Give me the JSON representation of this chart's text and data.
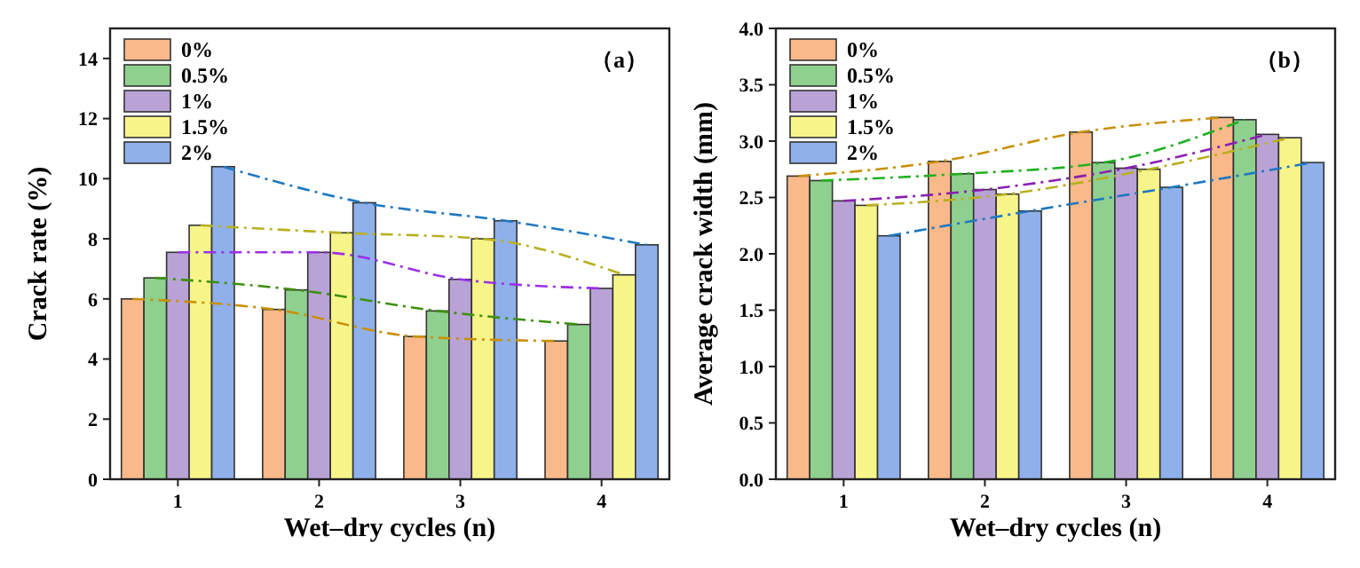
{
  "chart_data": [
    {
      "type": "bar",
      "xlabel": "Wet–dry cycles (n)",
      "ylabel": "Crack rate (%)",
      "categories": [
        "1",
        "2",
        "3",
        "4"
      ],
      "ylim": [
        0,
        15
      ],
      "yticks": [
        0,
        2,
        4,
        6,
        8,
        10,
        12,
        14
      ],
      "legend": "top left",
      "grid": false,
      "annotations": [
        "（a）"
      ],
      "series": [
        {
          "name": "0%",
          "color": "#f9b98a",
          "values": [
            6.0,
            5.65,
            4.75,
            4.6
          ]
        },
        {
          "name": "0.5%",
          "color": "#8fd08f",
          "values": [
            6.7,
            6.3,
            5.6,
            5.15
          ]
        },
        {
          "name": "1%",
          "color": "#b9a3d6",
          "values": [
            7.55,
            7.55,
            6.65,
            6.35
          ]
        },
        {
          "name": "1.5%",
          "color": "#f7f58a",
          "values": [
            8.45,
            8.2,
            8.0,
            6.8
          ]
        },
        {
          "name": "2%",
          "color": "#8fb0ea",
          "values": [
            10.4,
            9.2,
            8.6,
            7.8
          ]
        },
        {
          "type": "line",
          "color": "#c8900a",
          "line_style": "dashed",
          "values": [
            6.0,
            5.65,
            4.75,
            4.6
          ]
        },
        {
          "type": "line",
          "color": "#3f8f10",
          "line_style": "dashed",
          "values": [
            6.7,
            6.3,
            5.6,
            5.15
          ]
        },
        {
          "type": "line",
          "color": "#9a30e8",
          "line_style": "dashed",
          "values": [
            7.55,
            7.55,
            6.65,
            6.35
          ]
        },
        {
          "type": "line",
          "color": "#b8b020",
          "line_style": "dashed",
          "values": [
            8.45,
            8.2,
            8.0,
            6.8
          ]
        },
        {
          "type": "line",
          "color": "#1f78c0",
          "line_style": "dashed",
          "values": [
            10.4,
            9.2,
            8.6,
            7.8
          ]
        }
      ]
    },
    {
      "type": "bar",
      "xlabel": "Wet–dry cycles (n)",
      "ylabel": "Average crack width (mm)",
      "categories": [
        "1",
        "2",
        "3",
        "4"
      ],
      "ylim": [
        0,
        4
      ],
      "yticks": [
        {
          "value": 0,
          "label": "0.0"
        },
        {
          "value": 0.5,
          "label": "0.5"
        },
        {
          "value": 1,
          "label": "1.0"
        },
        {
          "value": 1.5,
          "label": "1.5"
        },
        {
          "value": 2,
          "label": "2.0"
        },
        {
          "value": 2.5,
          "label": "2.5"
        },
        {
          "value": 3,
          "label": "3.0"
        },
        {
          "value": 3.5,
          "label": "3.5"
        },
        {
          "value": 4,
          "label": "4.0"
        }
      ],
      "legend": "top left",
      "grid": false,
      "annotations": [
        "（b）"
      ],
      "series": [
        {
          "name": "0%",
          "color": "#f9b98a",
          "values": [
            2.69,
            2.82,
            3.08,
            3.21
          ]
        },
        {
          "name": "0.5%",
          "color": "#8fd08f",
          "values": [
            2.65,
            2.71,
            2.81,
            3.19
          ]
        },
        {
          "name": "1%",
          "color": "#b9a3d6",
          "values": [
            2.47,
            2.57,
            2.76,
            3.06
          ]
        },
        {
          "name": "1.5%",
          "color": "#f7f58a",
          "values": [
            2.43,
            2.53,
            2.75,
            3.03
          ]
        },
        {
          "name": "2%",
          "color": "#8fb0ea",
          "values": [
            2.16,
            2.38,
            2.59,
            2.81
          ]
        },
        {
          "type": "line",
          "color": "#c8900a",
          "line_style": "dashed",
          "values": [
            2.69,
            2.82,
            3.08,
            3.21
          ]
        },
        {
          "type": "line",
          "color": "#20b020",
          "line_style": "dashed",
          "values": [
            2.65,
            2.71,
            2.81,
            3.19
          ]
        },
        {
          "type": "line",
          "color": "#8a20b0",
          "line_style": "dashed",
          "values": [
            2.47,
            2.57,
            2.76,
            3.06
          ]
        },
        {
          "type": "line",
          "color": "#b8b020",
          "line_style": "dashed",
          "values": [
            2.43,
            2.53,
            2.75,
            3.03
          ]
        },
        {
          "type": "line",
          "color": "#1f78c0",
          "line_style": "dashed",
          "values": [
            2.16,
            2.38,
            2.59,
            2.81
          ]
        }
      ]
    }
  ]
}
